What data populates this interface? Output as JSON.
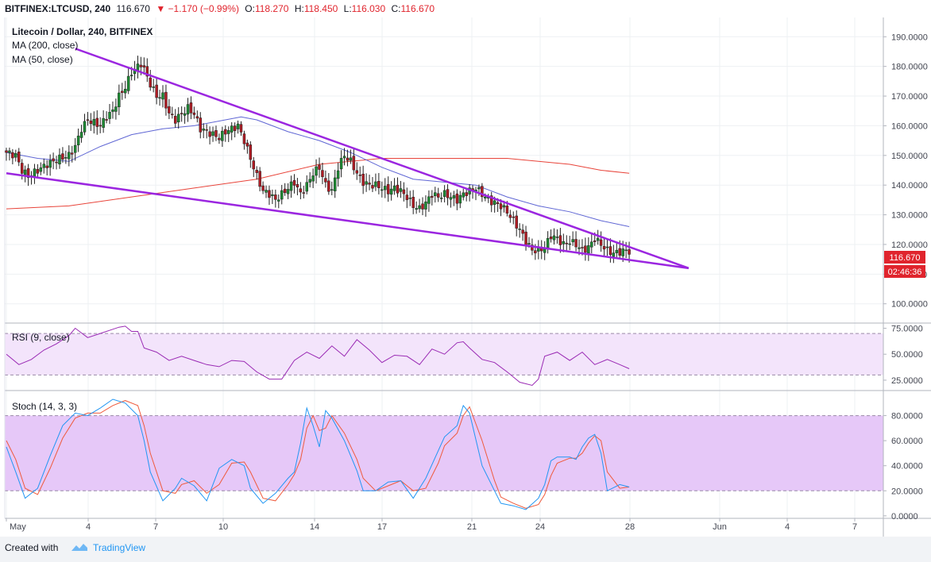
{
  "header": {
    "symbol": "BITFINEX:LTCUSD, 240",
    "last": "116.670",
    "change_arrow": "▼",
    "change": "−1.170 (−0.99%)",
    "o_label": "O:",
    "o_value": "118.270",
    "h_label": "H:",
    "h_value": "118.450",
    "l_label": "L:",
    "l_value": "116.030",
    "c_label": "C:",
    "c_value": "116.670"
  },
  "legend": {
    "title": "Litecoin / Dollar, 240, BITFINEX",
    "ma200": "MA (200, close)",
    "ma50": "MA (50, close)"
  },
  "rsi_label": "RSI (9, close)",
  "stoch_label": "Stoch (14, 3, 3)",
  "price_tag": {
    "value": "116.670",
    "countdown": "02:46:36"
  },
  "footer": {
    "created_with": "Created with",
    "brand": "TradingView"
  },
  "colors": {
    "up": "#1e8c34",
    "down": "#b01c24",
    "trendline": "#9b26e0",
    "ma200": "#e8443a",
    "ma50": "#5f66d4",
    "rsi": "#9a2ab4",
    "stoch_k": "#2196f3",
    "stoch_d": "#ef5a3c",
    "price_tag": "#e0242d"
  },
  "chart_data": {
    "type": "candlestick",
    "x_tick_labels": [
      "May",
      "4",
      "7",
      "10",
      "14",
      "17",
      "21",
      "24",
      "28",
      "Jun",
      "4",
      "7"
    ],
    "price_axis": {
      "ticks": [
        100,
        110,
        120,
        130,
        140,
        150,
        160,
        170,
        180,
        190
      ],
      "tick_labels": [
        "100.0000",
        "110.0000",
        "120.0000",
        "130.0000",
        "140.0000",
        "150.0000",
        "160.0000",
        "170.0000",
        "180.0000",
        "190.0000"
      ],
      "ylim": [
        93.5,
        196.5
      ]
    },
    "rsi_axis": {
      "ticks": [
        25,
        50,
        75
      ],
      "tick_labels": [
        "25.0000",
        "50.0000",
        "75.0000"
      ],
      "band": [
        30,
        70
      ],
      "ylim": [
        15,
        80
      ]
    },
    "stoch_axis": {
      "ticks": [
        0,
        20,
        40,
        60,
        80
      ],
      "tick_labels": [
        "0.0000",
        "20.0000",
        "40.0000",
        "60.0000",
        "80.0000"
      ],
      "band": [
        20,
        80
      ],
      "ylim": [
        -2,
        100
      ]
    },
    "price_anchors": [
      [
        0,
        151
      ],
      [
        3,
        150
      ],
      [
        5,
        145
      ],
      [
        7,
        143
      ],
      [
        10,
        145
      ],
      [
        13,
        147
      ],
      [
        15,
        148
      ],
      [
        17,
        149
      ],
      [
        20,
        150
      ],
      [
        22,
        153
      ],
      [
        24,
        159
      ],
      [
        26,
        162
      ],
      [
        28,
        161
      ],
      [
        30,
        160
      ],
      [
        32,
        163
      ],
      [
        34,
        165
      ],
      [
        36,
        170
      ],
      [
        38,
        173
      ],
      [
        40,
        178
      ],
      [
        42,
        180
      ],
      [
        43,
        181
      ],
      [
        44,
        179
      ],
      [
        46,
        174
      ],
      [
        48,
        170
      ],
      [
        50,
        170
      ],
      [
        52,
        164
      ],
      [
        54,
        162
      ],
      [
        56,
        164
      ],
      [
        58,
        166
      ],
      [
        60,
        164
      ],
      [
        62,
        159
      ],
      [
        64,
        158
      ],
      [
        66,
        157
      ],
      [
        68,
        156
      ],
      [
        70,
        158
      ],
      [
        72,
        159
      ],
      [
        74,
        160
      ],
      [
        76,
        155
      ],
      [
        78,
        149
      ],
      [
        80,
        143
      ],
      [
        82,
        138
      ],
      [
        84,
        137
      ],
      [
        86,
        135
      ],
      [
        88,
        137
      ],
      [
        90,
        139
      ],
      [
        92,
        141
      ],
      [
        94,
        137
      ],
      [
        96,
        140
      ],
      [
        98,
        144
      ],
      [
        100,
        146
      ],
      [
        102,
        140
      ],
      [
        104,
        138
      ],
      [
        106,
        146
      ],
      [
        108,
        150
      ],
      [
        110,
        148
      ],
      [
        112,
        144
      ],
      [
        114,
        141
      ],
      [
        116,
        140
      ],
      [
        118,
        140
      ],
      [
        120,
        139
      ],
      [
        122,
        138
      ],
      [
        124,
        139
      ],
      [
        126,
        138
      ],
      [
        128,
        136
      ],
      [
        130,
        133
      ],
      [
        132,
        132
      ],
      [
        134,
        134
      ],
      [
        136,
        137
      ],
      [
        138,
        136
      ],
      [
        140,
        137
      ],
      [
        142,
        136
      ],
      [
        144,
        135
      ],
      [
        146,
        137
      ],
      [
        148,
        138
      ],
      [
        150,
        139
      ],
      [
        152,
        137
      ],
      [
        154,
        135
      ],
      [
        156,
        134
      ],
      [
        158,
        133
      ],
      [
        160,
        131
      ],
      [
        162,
        128
      ],
      [
        164,
        125
      ],
      [
        166,
        121
      ],
      [
        168,
        118
      ],
      [
        170,
        118
      ],
      [
        172,
        119
      ],
      [
        174,
        123
      ],
      [
        176,
        122
      ],
      [
        178,
        120
      ],
      [
        180,
        121
      ],
      [
        182,
        120
      ],
      [
        184,
        118
      ],
      [
        186,
        119
      ],
      [
        188,
        122
      ],
      [
        190,
        120
      ],
      [
        192,
        118
      ],
      [
        194,
        117
      ],
      [
        196,
        117.5
      ],
      [
        198,
        118
      ],
      [
        199,
        116.7
      ]
    ],
    "ma200_values": [
      [
        0,
        132
      ],
      [
        20,
        133
      ],
      [
        40,
        136
      ],
      [
        60,
        139
      ],
      [
        80,
        142
      ],
      [
        100,
        147
      ],
      [
        120,
        149
      ],
      [
        140,
        149
      ],
      [
        150,
        149
      ],
      [
        160,
        149
      ],
      [
        170,
        148
      ],
      [
        180,
        147
      ],
      [
        190,
        145
      ],
      [
        199,
        144
      ]
    ],
    "ma50_values": [
      [
        0,
        151
      ],
      [
        10,
        149
      ],
      [
        20,
        148
      ],
      [
        30,
        153
      ],
      [
        40,
        157
      ],
      [
        50,
        159
      ],
      [
        60,
        160
      ],
      [
        70,
        162
      ],
      [
        75,
        163
      ],
      [
        80,
        162
      ],
      [
        90,
        158
      ],
      [
        100,
        155
      ],
      [
        110,
        151
      ],
      [
        120,
        146
      ],
      [
        130,
        142
      ],
      [
        140,
        141
      ],
      [
        150,
        140
      ],
      [
        160,
        136
      ],
      [
        170,
        133
      ],
      [
        180,
        131
      ],
      [
        190,
        128
      ],
      [
        199,
        126
      ]
    ],
    "trendlines": [
      {
        "name": "upper",
        "from": [
          22,
          186
        ],
        "to": [
          218,
          112
        ]
      },
      {
        "name": "lower",
        "from": [
          0,
          144
        ],
        "to": [
          218,
          112
        ]
      }
    ],
    "rsi_values": [
      [
        0,
        50
      ],
      [
        4,
        40
      ],
      [
        8,
        45
      ],
      [
        12,
        54
      ],
      [
        16,
        60
      ],
      [
        20,
        68
      ],
      [
        22,
        75
      ],
      [
        26,
        66
      ],
      [
        30,
        70
      ],
      [
        34,
        74
      ],
      [
        36,
        76
      ],
      [
        38,
        77
      ],
      [
        40,
        72
      ],
      [
        42,
        72
      ],
      [
        44,
        56
      ],
      [
        48,
        52
      ],
      [
        52,
        44
      ],
      [
        56,
        48
      ],
      [
        60,
        44
      ],
      [
        64,
        40
      ],
      [
        68,
        38
      ],
      [
        72,
        44
      ],
      [
        76,
        43
      ],
      [
        80,
        33
      ],
      [
        84,
        26
      ],
      [
        88,
        26
      ],
      [
        92,
        44
      ],
      [
        96,
        52
      ],
      [
        100,
        46
      ],
      [
        104,
        58
      ],
      [
        108,
        48
      ],
      [
        112,
        64
      ],
      [
        116,
        54
      ],
      [
        120,
        42
      ],
      [
        124,
        49
      ],
      [
        128,
        48
      ],
      [
        132,
        40
      ],
      [
        136,
        55
      ],
      [
        140,
        50
      ],
      [
        144,
        61
      ],
      [
        146,
        62
      ],
      [
        148,
        56
      ],
      [
        152,
        45
      ],
      [
        156,
        42
      ],
      [
        160,
        33
      ],
      [
        164,
        23
      ],
      [
        168,
        20
      ],
      [
        170,
        26
      ],
      [
        172,
        48
      ],
      [
        176,
        52
      ],
      [
        180,
        44
      ],
      [
        184,
        52
      ],
      [
        188,
        40
      ],
      [
        192,
        45
      ],
      [
        196,
        40
      ],
      [
        199,
        36
      ]
    ],
    "stoch_k_values": [
      [
        0,
        55
      ],
      [
        3,
        35
      ],
      [
        6,
        14
      ],
      [
        10,
        22
      ],
      [
        14,
        48
      ],
      [
        18,
        72
      ],
      [
        22,
        82
      ],
      [
        26,
        80
      ],
      [
        30,
        86
      ],
      [
        34,
        93
      ],
      [
        38,
        90
      ],
      [
        42,
        80
      ],
      [
        44,
        60
      ],
      [
        46,
        35
      ],
      [
        50,
        12
      ],
      [
        54,
        22
      ],
      [
        56,
        30
      ],
      [
        60,
        24
      ],
      [
        64,
        12
      ],
      [
        68,
        38
      ],
      [
        72,
        45
      ],
      [
        76,
        40
      ],
      [
        78,
        22
      ],
      [
        82,
        10
      ],
      [
        86,
        18
      ],
      [
        90,
        30
      ],
      [
        92,
        35
      ],
      [
        94,
        58
      ],
      [
        96,
        86
      ],
      [
        98,
        72
      ],
      [
        100,
        55
      ],
      [
        102,
        84
      ],
      [
        104,
        78
      ],
      [
        108,
        60
      ],
      [
        112,
        36
      ],
      [
        114,
        20
      ],
      [
        118,
        20
      ],
      [
        122,
        27
      ],
      [
        126,
        28
      ],
      [
        130,
        14
      ],
      [
        134,
        30
      ],
      [
        138,
        52
      ],
      [
        140,
        63
      ],
      [
        144,
        72
      ],
      [
        146,
        88
      ],
      [
        148,
        82
      ],
      [
        152,
        40
      ],
      [
        156,
        20
      ],
      [
        158,
        10
      ],
      [
        162,
        8
      ],
      [
        166,
        5
      ],
      [
        170,
        14
      ],
      [
        172,
        25
      ],
      [
        174,
        44
      ],
      [
        176,
        47
      ],
      [
        180,
        47
      ],
      [
        182,
        45
      ],
      [
        184,
        55
      ],
      [
        186,
        62
      ],
      [
        188,
        65
      ],
      [
        190,
        50
      ],
      [
        192,
        20
      ],
      [
        196,
        25
      ],
      [
        199,
        23
      ]
    ],
    "stoch_d_values": [
      [
        0,
        60
      ],
      [
        3,
        45
      ],
      [
        6,
        22
      ],
      [
        10,
        17
      ],
      [
        14,
        38
      ],
      [
        18,
        62
      ],
      [
        22,
        78
      ],
      [
        26,
        82
      ],
      [
        30,
        82
      ],
      [
        34,
        88
      ],
      [
        38,
        92
      ],
      [
        42,
        88
      ],
      [
        44,
        72
      ],
      [
        46,
        50
      ],
      [
        50,
        20
      ],
      [
        54,
        18
      ],
      [
        56,
        25
      ],
      [
        60,
        28
      ],
      [
        64,
        18
      ],
      [
        68,
        25
      ],
      [
        72,
        42
      ],
      [
        76,
        43
      ],
      [
        78,
        35
      ],
      [
        82,
        14
      ],
      [
        86,
        12
      ],
      [
        90,
        25
      ],
      [
        92,
        33
      ],
      [
        94,
        45
      ],
      [
        96,
        70
      ],
      [
        98,
        80
      ],
      [
        100,
        68
      ],
      [
        102,
        70
      ],
      [
        104,
        80
      ],
      [
        108,
        66
      ],
      [
        112,
        45
      ],
      [
        114,
        30
      ],
      [
        118,
        20
      ],
      [
        122,
        24
      ],
      [
        126,
        28
      ],
      [
        130,
        20
      ],
      [
        134,
        22
      ],
      [
        138,
        42
      ],
      [
        140,
        56
      ],
      [
        144,
        66
      ],
      [
        146,
        80
      ],
      [
        148,
        87
      ],
      [
        152,
        60
      ],
      [
        156,
        28
      ],
      [
        158,
        15
      ],
      [
        162,
        10
      ],
      [
        166,
        6
      ],
      [
        170,
        9
      ],
      [
        172,
        17
      ],
      [
        174,
        32
      ],
      [
        176,
        42
      ],
      [
        180,
        46
      ],
      [
        182,
        46
      ],
      [
        184,
        50
      ],
      [
        186,
        58
      ],
      [
        188,
        64
      ],
      [
        190,
        60
      ],
      [
        192,
        35
      ],
      [
        196,
        22
      ],
      [
        199,
        23
      ]
    ]
  }
}
